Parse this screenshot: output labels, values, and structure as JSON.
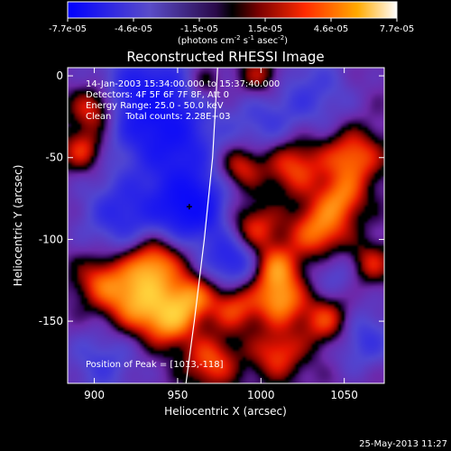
{
  "colorbar": {
    "ticks": [
      "-7.7e-05",
      "-4.6e-05",
      "-1.5e-05",
      "1.5e-05",
      "4.6e-05",
      "7.7e-05"
    ],
    "units_main": "(photons cm",
    "units_exp1": "-2",
    "units_mid": " s",
    "units_exp2": "-1",
    "units_mid2": " asec",
    "units_exp3": "-2",
    "units_end": ")"
  },
  "chart_data": {
    "type": "heatmap",
    "title": "Reconstructed RHESSI Image",
    "xlabel": "Heliocentric X (arcsec)",
    "ylabel": "Heliocentric Y (arcsec)",
    "xlim": [
      884,
      1074
    ],
    "ylim": [
      -188,
      5
    ],
    "xticks": [
      {
        "value": 900,
        "label": "900"
      },
      {
        "value": 950,
        "label": "950"
      },
      {
        "value": 1000,
        "label": "1000"
      },
      {
        "value": 1050,
        "label": "1050"
      }
    ],
    "yticks": [
      {
        "value": 0,
        "label": "0"
      },
      {
        "value": -50,
        "label": "-50"
      },
      {
        "value": -100,
        "label": "-100"
      },
      {
        "value": -150,
        "label": "-150"
      }
    ],
    "value_range": [
      -7.7e-05,
      7.7e-05
    ],
    "limb_curve": [
      [
        974,
        5
      ],
      [
        971,
        -50
      ],
      [
        966,
        -100
      ],
      [
        960,
        -150
      ],
      [
        955,
        -188
      ]
    ],
    "peak_marker": [
      957,
      -80
    ],
    "annotations": [
      "14-Jan-2003 15:34:00.000 to 15:37:40.000",
      "Detectors: 4F 5F 6F 7F 8F, Att 0",
      "Energy Range: 25.0 - 50.0 keV",
      "Clean     Total counts: 2.28E+03"
    ],
    "peak_label": "Position of Peak = [1013,-118]",
    "sources": [
      {
        "x": 932,
        "y": -15,
        "amp": -0.85,
        "s": 22
      },
      {
        "x": 958,
        "y": -80,
        "amp": -1.0,
        "s": 14
      },
      {
        "x": 988,
        "y": -112,
        "amp": -0.9,
        "s": 15
      },
      {
        "x": 918,
        "y": -85,
        "amp": -0.6,
        "s": 18
      },
      {
        "x": 950,
        "y": -45,
        "amp": -0.55,
        "s": 18
      },
      {
        "x": 1030,
        "y": -10,
        "amp": -0.4,
        "s": 18
      },
      {
        "x": 1060,
        "y": -160,
        "amp": -0.5,
        "s": 14
      },
      {
        "x": 1045,
        "y": -120,
        "amp": -0.35,
        "s": 12
      },
      {
        "x": 905,
        "y": -175,
        "amp": -0.4,
        "s": 16
      },
      {
        "x": 1000,
        "y": -30,
        "amp": -0.35,
        "s": 14
      },
      {
        "x": 935,
        "y": -115,
        "amp": 0.85,
        "s": 12
      },
      {
        "x": 925,
        "y": -138,
        "amp": 0.8,
        "s": 13
      },
      {
        "x": 945,
        "y": -150,
        "amp": 0.75,
        "s": 11
      },
      {
        "x": 958,
        "y": -135,
        "amp": 0.7,
        "s": 10
      },
      {
        "x": 1007,
        "y": -118,
        "amp": 1.0,
        "s": 11
      },
      {
        "x": 995,
        "y": -95,
        "amp": 0.8,
        "s": 11
      },
      {
        "x": 1012,
        "y": -138,
        "amp": 0.7,
        "s": 10
      },
      {
        "x": 985,
        "y": -140,
        "amp": 0.65,
        "s": 11
      },
      {
        "x": 1035,
        "y": -95,
        "amp": 0.75,
        "s": 12
      },
      {
        "x": 1055,
        "y": -50,
        "amp": 0.7,
        "s": 12
      },
      {
        "x": 1048,
        "y": -75,
        "amp": 0.6,
        "s": 10
      },
      {
        "x": 1020,
        "y": -55,
        "amp": 0.6,
        "s": 12
      },
      {
        "x": 988,
        "y": -55,
        "amp": 0.55,
        "s": 9
      },
      {
        "x": 1040,
        "y": -150,
        "amp": 0.65,
        "s": 11
      },
      {
        "x": 900,
        "y": -20,
        "amp": 0.7,
        "s": 10
      },
      {
        "x": 893,
        "y": -45,
        "amp": 0.55,
        "s": 9
      },
      {
        "x": 904,
        "y": -125,
        "amp": 0.55,
        "s": 11
      },
      {
        "x": 970,
        "y": -175,
        "amp": 0.6,
        "s": 11
      },
      {
        "x": 1010,
        "y": -170,
        "amp": 0.55,
        "s": 11
      },
      {
        "x": 1065,
        "y": -115,
        "amp": 0.5,
        "s": 9
      },
      {
        "x": 1000,
        "y": 0,
        "amp": 0.45,
        "s": 9
      },
      {
        "x": 965,
        "y": -5,
        "amp": 0.35,
        "s": 8
      }
    ]
  },
  "footer_date": "25-May-2013 11:27"
}
